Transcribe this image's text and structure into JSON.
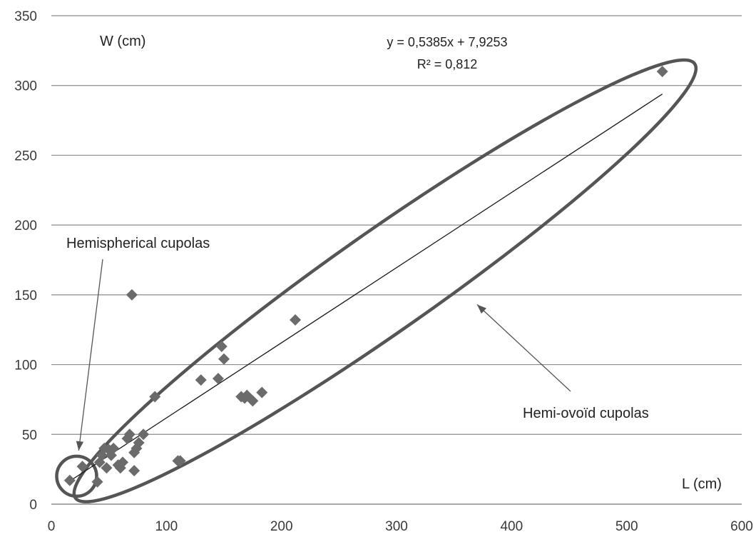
{
  "chart_data": {
    "type": "scatter",
    "xlabel": "L (cm)",
    "ylabel": "W (cm)",
    "xlim": [
      0,
      600
    ],
    "ylim": [
      0,
      350
    ],
    "xticks": [
      0,
      100,
      200,
      300,
      400,
      500,
      600
    ],
    "yticks": [
      0,
      50,
      100,
      150,
      200,
      250,
      300,
      350
    ],
    "grid": "horizontal",
    "colors": {
      "points": "#6b6b6b",
      "grid": "#8c8c8c",
      "ellipse": "#555555",
      "trendline": "#1a1a1a",
      "text": "#222222"
    },
    "series": [
      {
        "marker": "diamond",
        "points": [
          [
            16,
            17
          ],
          [
            27,
            27
          ],
          [
            40,
            16
          ],
          [
            42,
            30
          ],
          [
            44,
            35
          ],
          [
            46,
            40
          ],
          [
            48,
            26
          ],
          [
            50,
            39
          ],
          [
            52,
            35
          ],
          [
            54,
            40
          ],
          [
            58,
            28
          ],
          [
            60,
            26
          ],
          [
            62,
            30
          ],
          [
            66,
            47
          ],
          [
            68,
            50
          ],
          [
            70,
            150
          ],
          [
            72,
            24
          ],
          [
            72,
            37
          ],
          [
            74,
            40
          ],
          [
            76,
            44
          ],
          [
            80,
            50
          ],
          [
            90,
            77
          ],
          [
            110,
            31
          ],
          [
            112,
            31
          ],
          [
            130,
            89
          ],
          [
            145,
            90
          ],
          [
            148,
            113
          ],
          [
            150,
            104
          ],
          [
            165,
            77
          ],
          [
            168,
            76
          ],
          [
            170,
            78
          ],
          [
            175,
            74
          ],
          [
            183,
            80
          ],
          [
            212,
            132
          ],
          [
            531,
            310
          ]
        ]
      }
    ],
    "trendline": {
      "equation": "y = 0,5385x + 7,9253",
      "r2": "R² = 0,812",
      "slope": 0.5385,
      "intercept": 7.9253,
      "x_range": [
        16,
        531
      ]
    },
    "annotations": [
      {
        "text": "Hemispherical cupolas",
        "shape": "circle around the small-cupola cluster",
        "arrow_target": [
          25,
          23
        ]
      },
      {
        "text": "Hemi-ovoïd cupolas",
        "shape": "ellipse around the trend of all cupolas",
        "arrow_target": [
          370,
          143
        ]
      }
    ]
  }
}
